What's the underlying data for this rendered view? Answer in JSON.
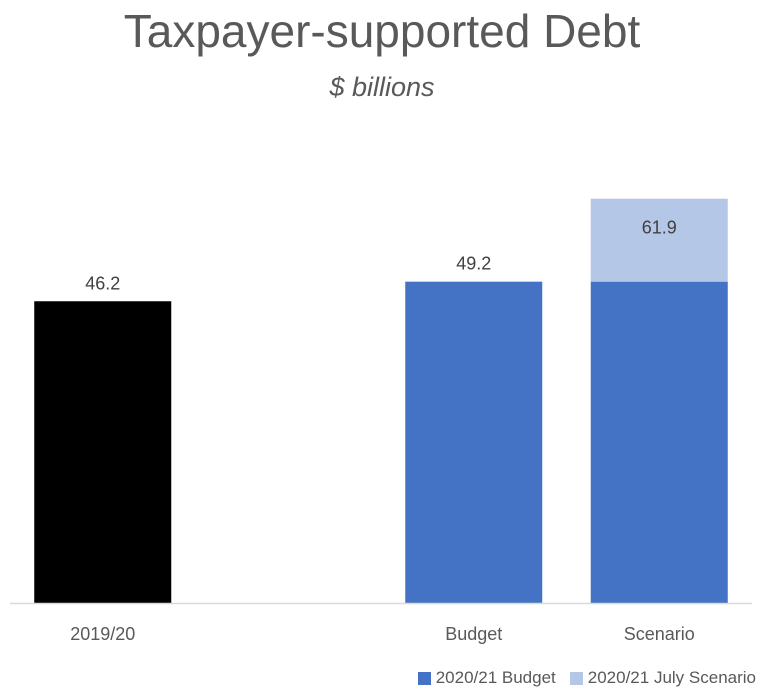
{
  "title": "Taxpayer-supported Debt",
  "subtitle": "$ billions",
  "chart_data": {
    "type": "bar",
    "stacked": true,
    "title": "Taxpayer-supported Debt",
    "subtitle": "$ billions",
    "categories": [
      "2019/20",
      "",
      "Budget",
      "Scenario"
    ],
    "bars": [
      {
        "category": "2019/20",
        "segments": [
          {
            "series": "2019/20",
            "value": 46.2
          }
        ],
        "label": "46.2"
      },
      {
        "category": "",
        "segments": [],
        "label": ""
      },
      {
        "category": "Budget",
        "segments": [
          {
            "series": "2020/21 Budget",
            "value": 49.2
          }
        ],
        "label": "49.2"
      },
      {
        "category": "Scenario",
        "segments": [
          {
            "series": "2020/21 Budget",
            "value": 49.2
          },
          {
            "series": "2020/21 July Scenario",
            "value": 12.7
          }
        ],
        "label": "61.9"
      }
    ],
    "series": [
      {
        "name": "2020/21 Budget",
        "color": "#4472C4"
      },
      {
        "name": "2020/21 July Scenario",
        "color": "#B4C7E7"
      }
    ],
    "colors": {
      "2019/20": "#000000",
      "axis": "#D9D9D9"
    },
    "ylim": [
      0,
      64
    ],
    "legend_position": "bottom-right",
    "grid": false
  },
  "legend": [
    {
      "label": "2020/21 Budget",
      "color": "#4472C4"
    },
    {
      "label": "2020/21 July Scenario",
      "color": "#B4C7E7"
    }
  ]
}
